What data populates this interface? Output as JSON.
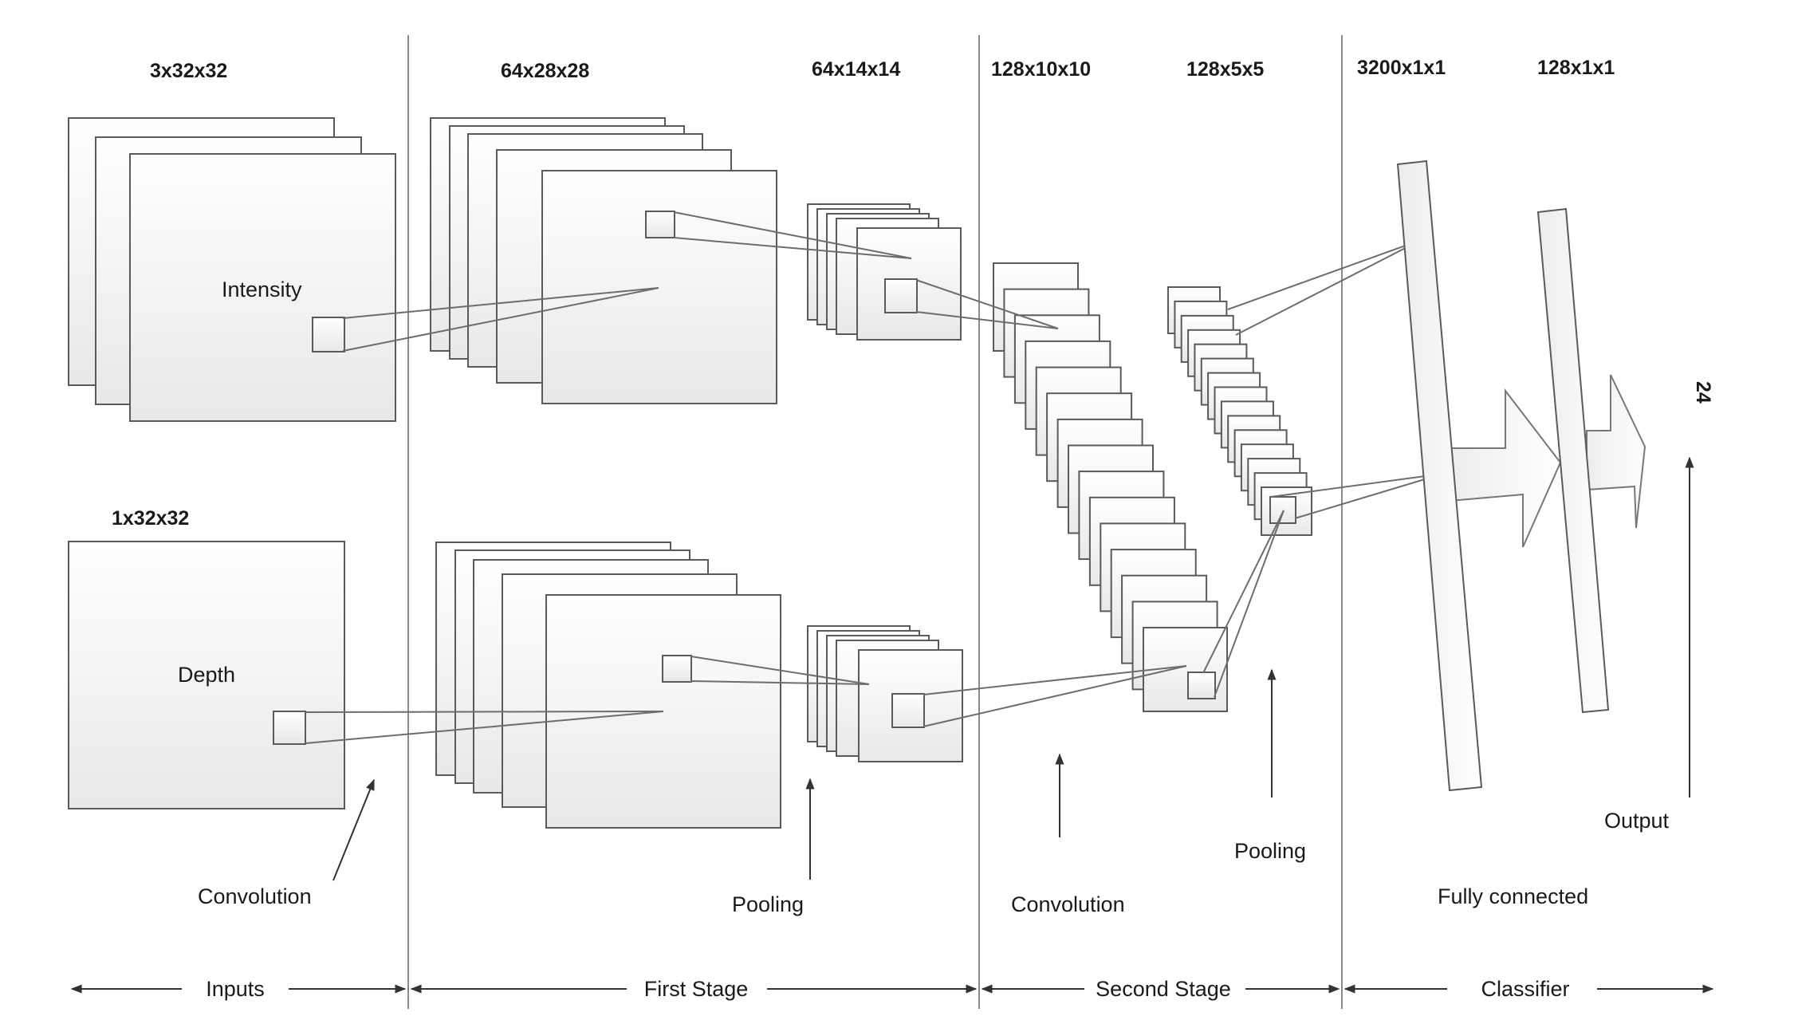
{
  "title": "",
  "dimensions": {
    "intensity_input": "3x32x32",
    "depth_input": "1x32x32",
    "conv1": "64x28x28",
    "pool1": "64x14x14",
    "conv2": "128x10x10",
    "pool2": "128x5x5",
    "flatten": "3200x1x1",
    "fc": "128x1x1",
    "output": "24"
  },
  "inputs": {
    "intensity": "Intensity",
    "depth": "Depth"
  },
  "operations": {
    "convolution_1": "Convolution",
    "pooling_1": "Pooling",
    "convolution_2": "Convolution",
    "pooling_2": "Pooling",
    "fully_connected": "Fully connected",
    "output": "Output"
  },
  "stages": [
    "Inputs",
    "First Stage",
    "Second Stage",
    "Classifier"
  ],
  "colors": {
    "line": "#5a5a5a",
    "fill_top": "#ffffff",
    "fill_bottom": "#e9e9e9",
    "arrow": "#333333"
  }
}
